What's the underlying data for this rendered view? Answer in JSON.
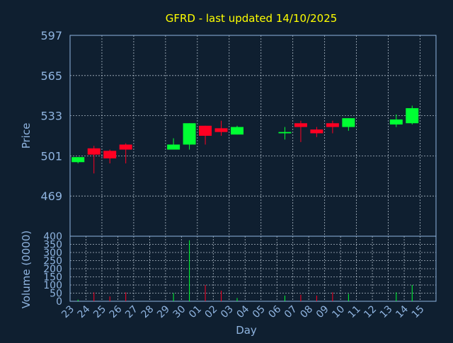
{
  "chart_data": [
    {
      "type": "candlestick",
      "title": "GFRD - last updated 14/10/2025",
      "ylabel": "Price",
      "ylim": [
        437,
        597
      ],
      "yticks": [
        597,
        565,
        533,
        501,
        469
      ],
      "grid": true,
      "colors": {
        "up": "#00ff33",
        "down": "#ff0022"
      },
      "candles": [
        {
          "day": "23",
          "open": 496,
          "high": 500,
          "low": 495,
          "close": 500
        },
        {
          "day": "24",
          "open": 507,
          "high": 509,
          "low": 487,
          "close": 502
        },
        {
          "day": "25",
          "open": 505,
          "high": 506,
          "low": 495,
          "close": 499
        },
        {
          "day": "26",
          "open": 510,
          "high": 511,
          "low": 495,
          "close": 506
        },
        {
          "day": "29",
          "open": 506,
          "high": 515,
          "low": 506,
          "close": 510
        },
        {
          "day": "30",
          "open": 510,
          "high": 527,
          "low": 506,
          "close": 527
        },
        {
          "day": "01",
          "open": 525,
          "high": 525,
          "low": 510,
          "close": 517
        },
        {
          "day": "02",
          "open": 523,
          "high": 529,
          "low": 517,
          "close": 520
        },
        {
          "day": "03",
          "open": 518,
          "high": 525,
          "low": 518,
          "close": 524
        },
        {
          "day": "06",
          "open": 519,
          "high": 524,
          "low": 514,
          "close": 520
        },
        {
          "day": "07",
          "open": 527,
          "high": 529,
          "low": 512,
          "close": 524
        },
        {
          "day": "08",
          "open": 522,
          "high": 524,
          "low": 516,
          "close": 519
        },
        {
          "day": "09",
          "open": 527,
          "high": 529,
          "low": 519,
          "close": 524
        },
        {
          "day": "10",
          "open": 524,
          "high": 531,
          "low": 521,
          "close": 531
        },
        {
          "day": "13",
          "open": 526,
          "high": 534,
          "low": 524,
          "close": 530
        },
        {
          "day": "14",
          "open": 527,
          "high": 541,
          "low": 526,
          "close": 539
        }
      ]
    },
    {
      "type": "bar",
      "ylabel": "Volume (0000)",
      "xlabel": "Day",
      "ylim": [
        0,
        400
      ],
      "yticks": [
        400,
        350,
        300,
        250,
        200,
        150,
        100,
        50,
        0
      ],
      "categories": [
        "23",
        "24",
        "25",
        "26",
        "27",
        "28",
        "29",
        "30",
        "01",
        "02",
        "03",
        "04",
        "05",
        "06",
        "07",
        "08",
        "09",
        "10",
        "11",
        "12",
        "13",
        "14",
        "15"
      ],
      "values": [
        10,
        55,
        30,
        55,
        0,
        0,
        50,
        375,
        100,
        65,
        20,
        0,
        0,
        35,
        40,
        35,
        55,
        45,
        0,
        0,
        55,
        100,
        0
      ],
      "bar_colors": [
        "up",
        "down",
        "down",
        "down",
        "up",
        "up",
        "up",
        "up",
        "down",
        "down",
        "up",
        "up",
        "up",
        "up",
        "down",
        "down",
        "down",
        "up",
        "up",
        "up",
        "up",
        "up",
        "up"
      ]
    }
  ]
}
